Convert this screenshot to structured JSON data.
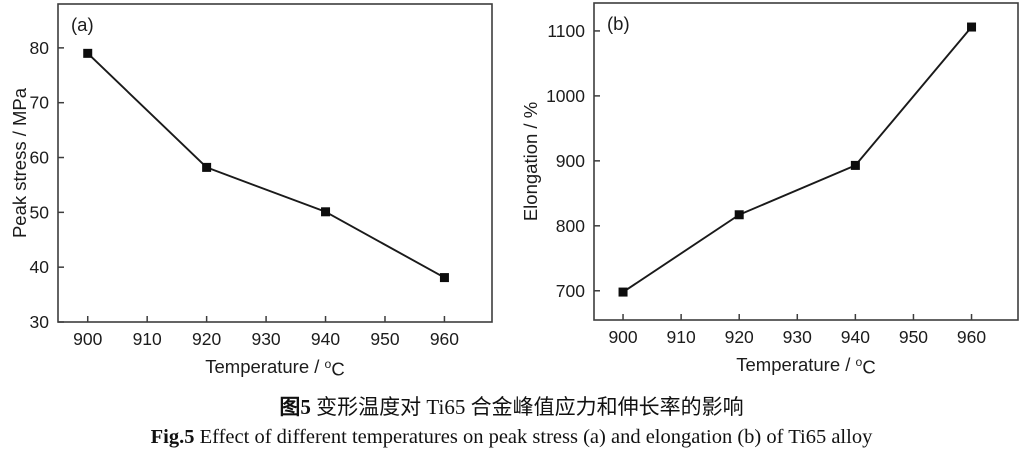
{
  "figure": {
    "caption_zh_prefix": "图5",
    "caption_zh_text": " 变形温度对 Ti65 合金峰值应力和伸长率的影响",
    "caption_en_prefix": "Fig.5",
    "caption_en_text": " Effect of different temperatures on peak stress (a) and elongation (b) of Ti65 alloy"
  },
  "colors": {
    "background": "#ffffff",
    "frame": "#3d3d3d",
    "line": "#1a1a1a",
    "marker": "#0d0d0d",
    "text": "#1c1c1c"
  },
  "chart_data": [
    {
      "type": "line",
      "panel_label": "(a)",
      "x": [
        900,
        920,
        940,
        960
      ],
      "values": [
        79,
        58.2,
        50.1,
        38.1
      ],
      "series_name": "Peak stress",
      "xlabel": "Temperature / °C",
      "ylabel": "Peak stress / MPa",
      "xlim": [
        895,
        968
      ],
      "ylim": [
        30,
        88
      ],
      "xticks": [
        900,
        910,
        920,
        930,
        940,
        950,
        960
      ],
      "yticks": [
        30,
        40,
        50,
        60,
        70,
        80
      ],
      "marker": "square",
      "grid": false,
      "legend": "none"
    },
    {
      "type": "line",
      "panel_label": "(b)",
      "x": [
        900,
        920,
        940,
        960
      ],
      "values": [
        698,
        817,
        893,
        1106
      ],
      "series_name": "Elongation",
      "xlabel": "Temperature / °C",
      "ylabel": "Elongation / %",
      "xlim": [
        895,
        968
      ],
      "ylim": [
        655,
        1143
      ],
      "xticks": [
        900,
        910,
        920,
        930,
        940,
        950,
        960
      ],
      "yticks": [
        700,
        800,
        900,
        1000,
        1100
      ],
      "marker": "square",
      "grid": false,
      "legend": "none"
    }
  ]
}
